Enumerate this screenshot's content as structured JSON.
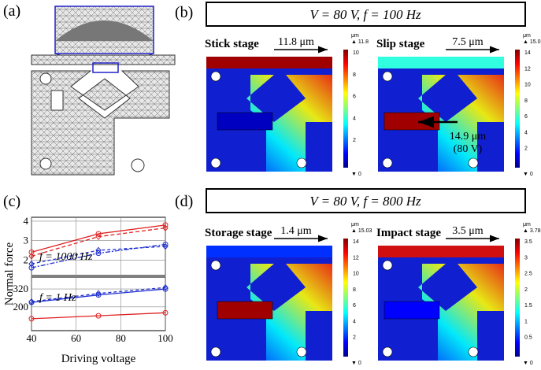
{
  "panel_labels": [
    "(a)",
    "(b)",
    "(c)",
    "(d)"
  ],
  "b": {
    "header": "V = 80 V, f = 100 Hz",
    "maps": [
      {
        "title": "Stick stage",
        "arrow_label": "11.8 μm",
        "unit": "μm",
        "max": "▲ 11.8",
        "min": "▼ 0",
        "ticks": [
          "10",
          "8",
          "6",
          "4",
          "2"
        ]
      },
      {
        "title": "Slip stage",
        "arrow_label": "7.5 μm",
        "unit": "μm",
        "max": "▲ 15.05",
        "min": "▼ 0",
        "ticks": [
          "14",
          "12",
          "10",
          "8",
          "6",
          "4",
          "2"
        ],
        "annotations": [
          "14.9 μm",
          "(80 V)"
        ]
      }
    ]
  },
  "d": {
    "header": "V = 80 V, f = 800 Hz",
    "maps": [
      {
        "title": "Storage stage",
        "arrow_label": "1.4 μm",
        "unit": "μm",
        "max": "▲ 15.03",
        "min": "▼ 0",
        "ticks": [
          "14",
          "12",
          "10",
          "8",
          "6",
          "4",
          "2"
        ]
      },
      {
        "title": "Impact stage",
        "arrow_label": "3.5 μm",
        "unit": "μm",
        "max": "▲ 3.783",
        "min": "▼ 0",
        "ticks": [
          "3.5",
          "3",
          "2.5",
          "2",
          "1.5",
          "1",
          "0.5"
        ]
      }
    ]
  },
  "c": {
    "y_label": "Normal force",
    "x_label": "Driving voltage"
  },
  "chart_data": [
    {
      "type": "line",
      "annotation": "f = 1000 Hz",
      "x": [
        40,
        70,
        100
      ],
      "xlim": [
        40,
        100
      ],
      "ylim": [
        1.2,
        4.2
      ],
      "yticks": [
        2,
        3,
        4
      ],
      "grid": true,
      "series": [
        {
          "color": "#e02020",
          "dash": "",
          "marker": "circle",
          "values": [
            2.4,
            3.35,
            3.8
          ]
        },
        {
          "color": "#e02020",
          "dash": "5 3",
          "marker": "diamond",
          "values": [
            2.2,
            3.2,
            3.65
          ]
        },
        {
          "color": "#2030d0",
          "dash": "6 2 2 2",
          "marker": "circle",
          "values": [
            1.6,
            2.35,
            2.8
          ]
        },
        {
          "color": "#2030d0",
          "dash": "4 3",
          "marker": "diamond",
          "values": [
            1.8,
            2.5,
            2.7
          ]
        }
      ]
    },
    {
      "type": "line",
      "annotation": "f = 1 Hz",
      "x": [
        40,
        70,
        100
      ],
      "xlim": [
        40,
        100
      ],
      "ylim": [
        40,
        400
      ],
      "xticks": [
        40,
        60,
        80,
        100
      ],
      "yticks": [
        200,
        320
      ],
      "grid": true,
      "series": [
        {
          "color": "#2030d0",
          "dash": "",
          "marker": "circle",
          "values": [
            230,
            280,
            320
          ]
        },
        {
          "color": "#2030d0",
          "dash": "4 3",
          "marker": "diamond",
          "values": [
            235,
            290,
            330
          ]
        },
        {
          "color": "#e02020",
          "dash": "",
          "marker": "circle",
          "values": [
            120,
            140,
            160
          ]
        }
      ]
    }
  ]
}
